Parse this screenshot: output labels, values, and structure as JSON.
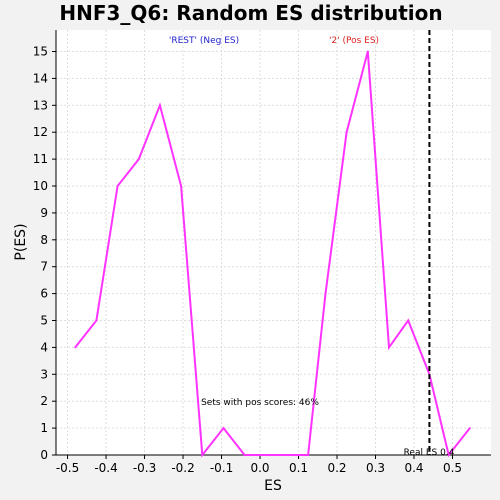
{
  "chart_data": {
    "type": "line",
    "title": "HNF3_Q6: Random ES distribution",
    "xlabel": "ES",
    "ylabel": "P(ES)",
    "xlim": [
      -0.53,
      0.6
    ],
    "ylim": [
      0,
      15.8
    ],
    "x_ticks": [
      -0.5,
      -0.4,
      -0.3,
      -0.2,
      -0.1,
      0.0,
      0.1,
      0.2,
      0.3,
      0.4,
      0.5
    ],
    "x_tick_labels": [
      "-0.5",
      "-0.4",
      "-0.3",
      "-0.2",
      "-0.1",
      "0.0",
      "0.1",
      "0.2",
      "0.3",
      "0.4",
      "0.5"
    ],
    "y_ticks": [
      0,
      1,
      2,
      3,
      4,
      5,
      6,
      7,
      8,
      9,
      10,
      11,
      12,
      13,
      14,
      15
    ],
    "y_tick_labels": [
      "0",
      "1",
      "2",
      "3",
      "4",
      "5",
      "6",
      "7",
      "8",
      "9",
      "10",
      "11",
      "12",
      "13",
      "14",
      "15"
    ],
    "grid": true,
    "series": [
      {
        "color": "#ff33ff",
        "x": [
          -0.48,
          -0.425,
          -0.37,
          -0.315,
          -0.26,
          -0.205,
          -0.15,
          -0.095,
          -0.04,
          0.015,
          0.07,
          0.125,
          0.17,
          0.225,
          0.28,
          0.335,
          0.385,
          0.44,
          0.49,
          0.545
        ],
        "y": [
          4,
          5,
          10,
          11,
          13,
          10,
          0,
          1,
          0,
          0,
          0,
          0,
          6,
          12,
          15,
          4,
          5,
          3,
          0,
          1
        ]
      }
    ],
    "real_es": {
      "x": 0.44,
      "label": "Real ES 0.4"
    },
    "annotations": {
      "neg_label": "'REST' (Neg ES)",
      "pos_label": "'2' (Pos ES)",
      "pos_scores": "Sets with pos scores: 46%"
    },
    "colors": {
      "line": "#ff33ff",
      "neg_label": "#2222cc",
      "pos_label": "#dd2222",
      "real_es_line": "#000000",
      "grid": "#dddddd"
    }
  }
}
